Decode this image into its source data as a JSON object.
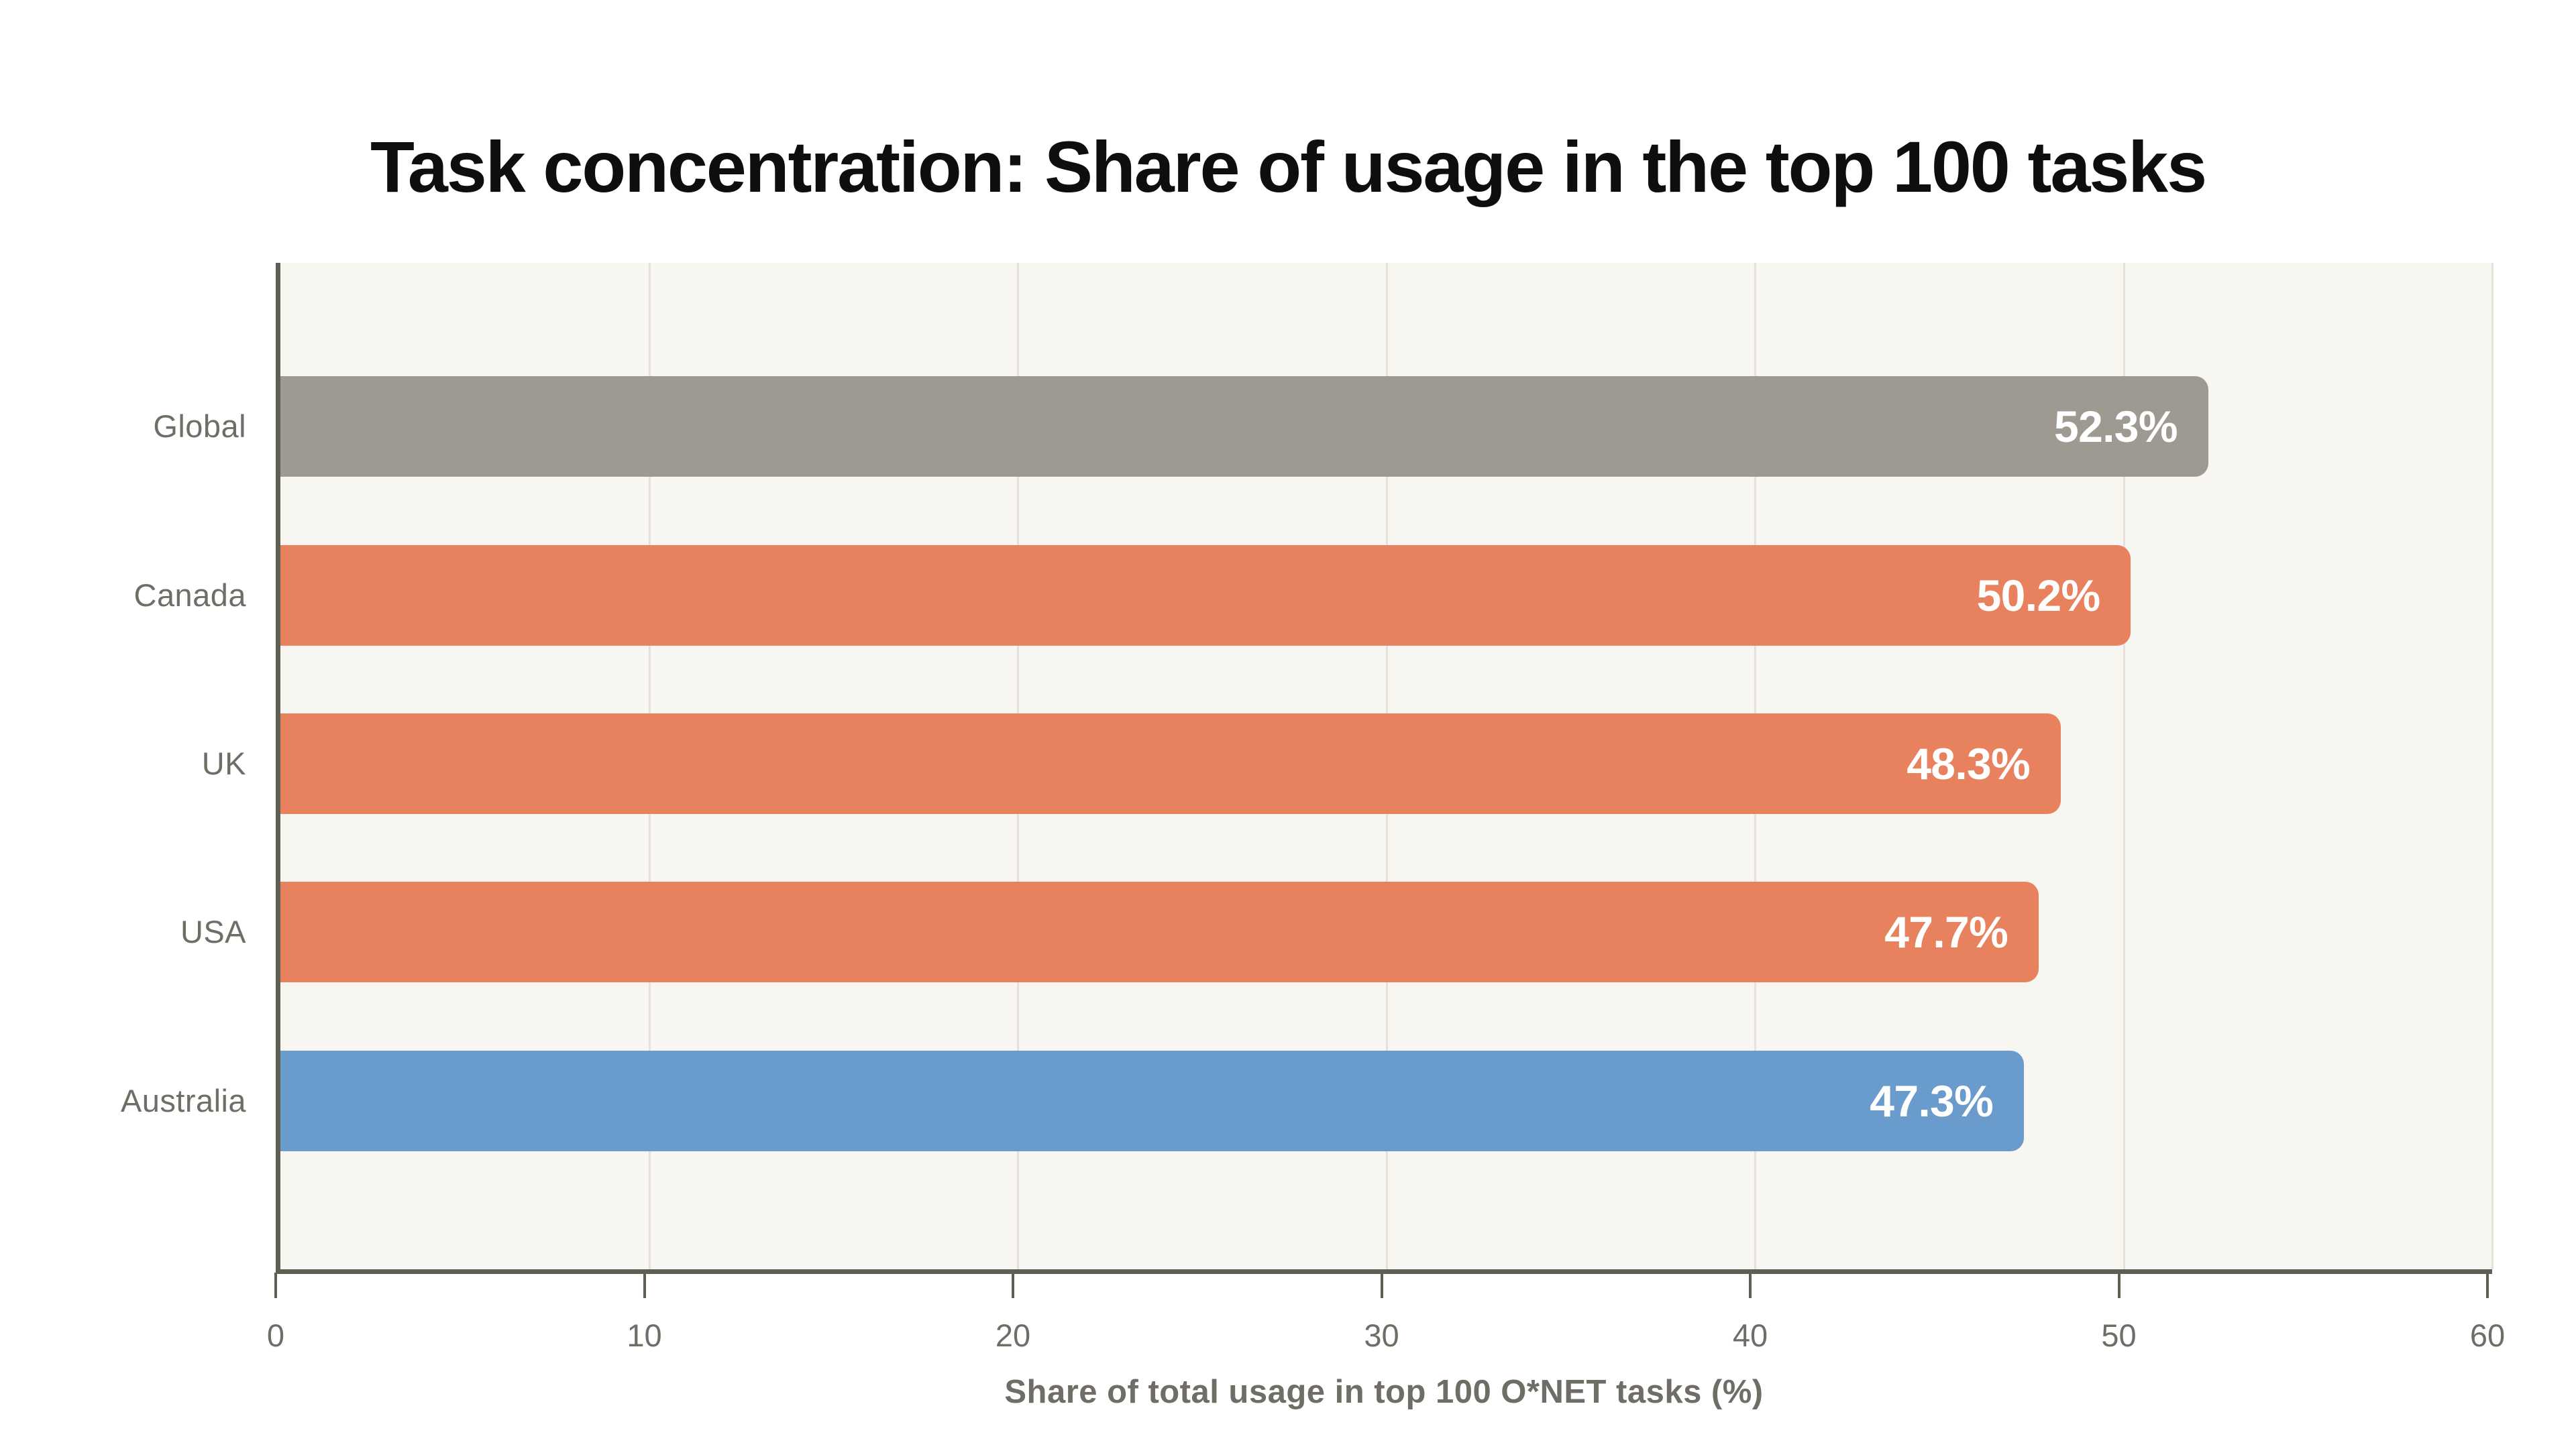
{
  "title": "Task concentration: Share of usage in the top 100 tasks",
  "chart_data": {
    "type": "bar",
    "orientation": "horizontal",
    "categories": [
      "Global",
      "Canada",
      "UK",
      "USA",
      "Australia"
    ],
    "values": [
      52.3,
      50.2,
      48.3,
      47.7,
      47.3
    ],
    "value_labels": [
      "52.3%",
      "50.2%",
      "48.3%",
      "47.7%",
      "47.3%"
    ],
    "bar_colors": [
      "#9E9A92",
      "#E8825E",
      "#E8825E",
      "#E8825E",
      "#6A9BCD"
    ],
    "xlabel": "Share of total usage in top 100 O*NET tasks (%)",
    "xlim": [
      0,
      60
    ],
    "xticks": [
      0,
      10,
      20,
      30,
      40,
      50,
      60
    ],
    "grid": "vertical gridlines every 10, on",
    "legend": "none",
    "style": {
      "plot_background": "#F8F6F0",
      "page_background": "#FFFFFF",
      "axis_color": "#605F56",
      "gridline_color": "#E5E2DB",
      "label_color": "#6F6D65",
      "title_color": "#0E0E0E",
      "value_label_color": "#FFFFFF"
    }
  }
}
